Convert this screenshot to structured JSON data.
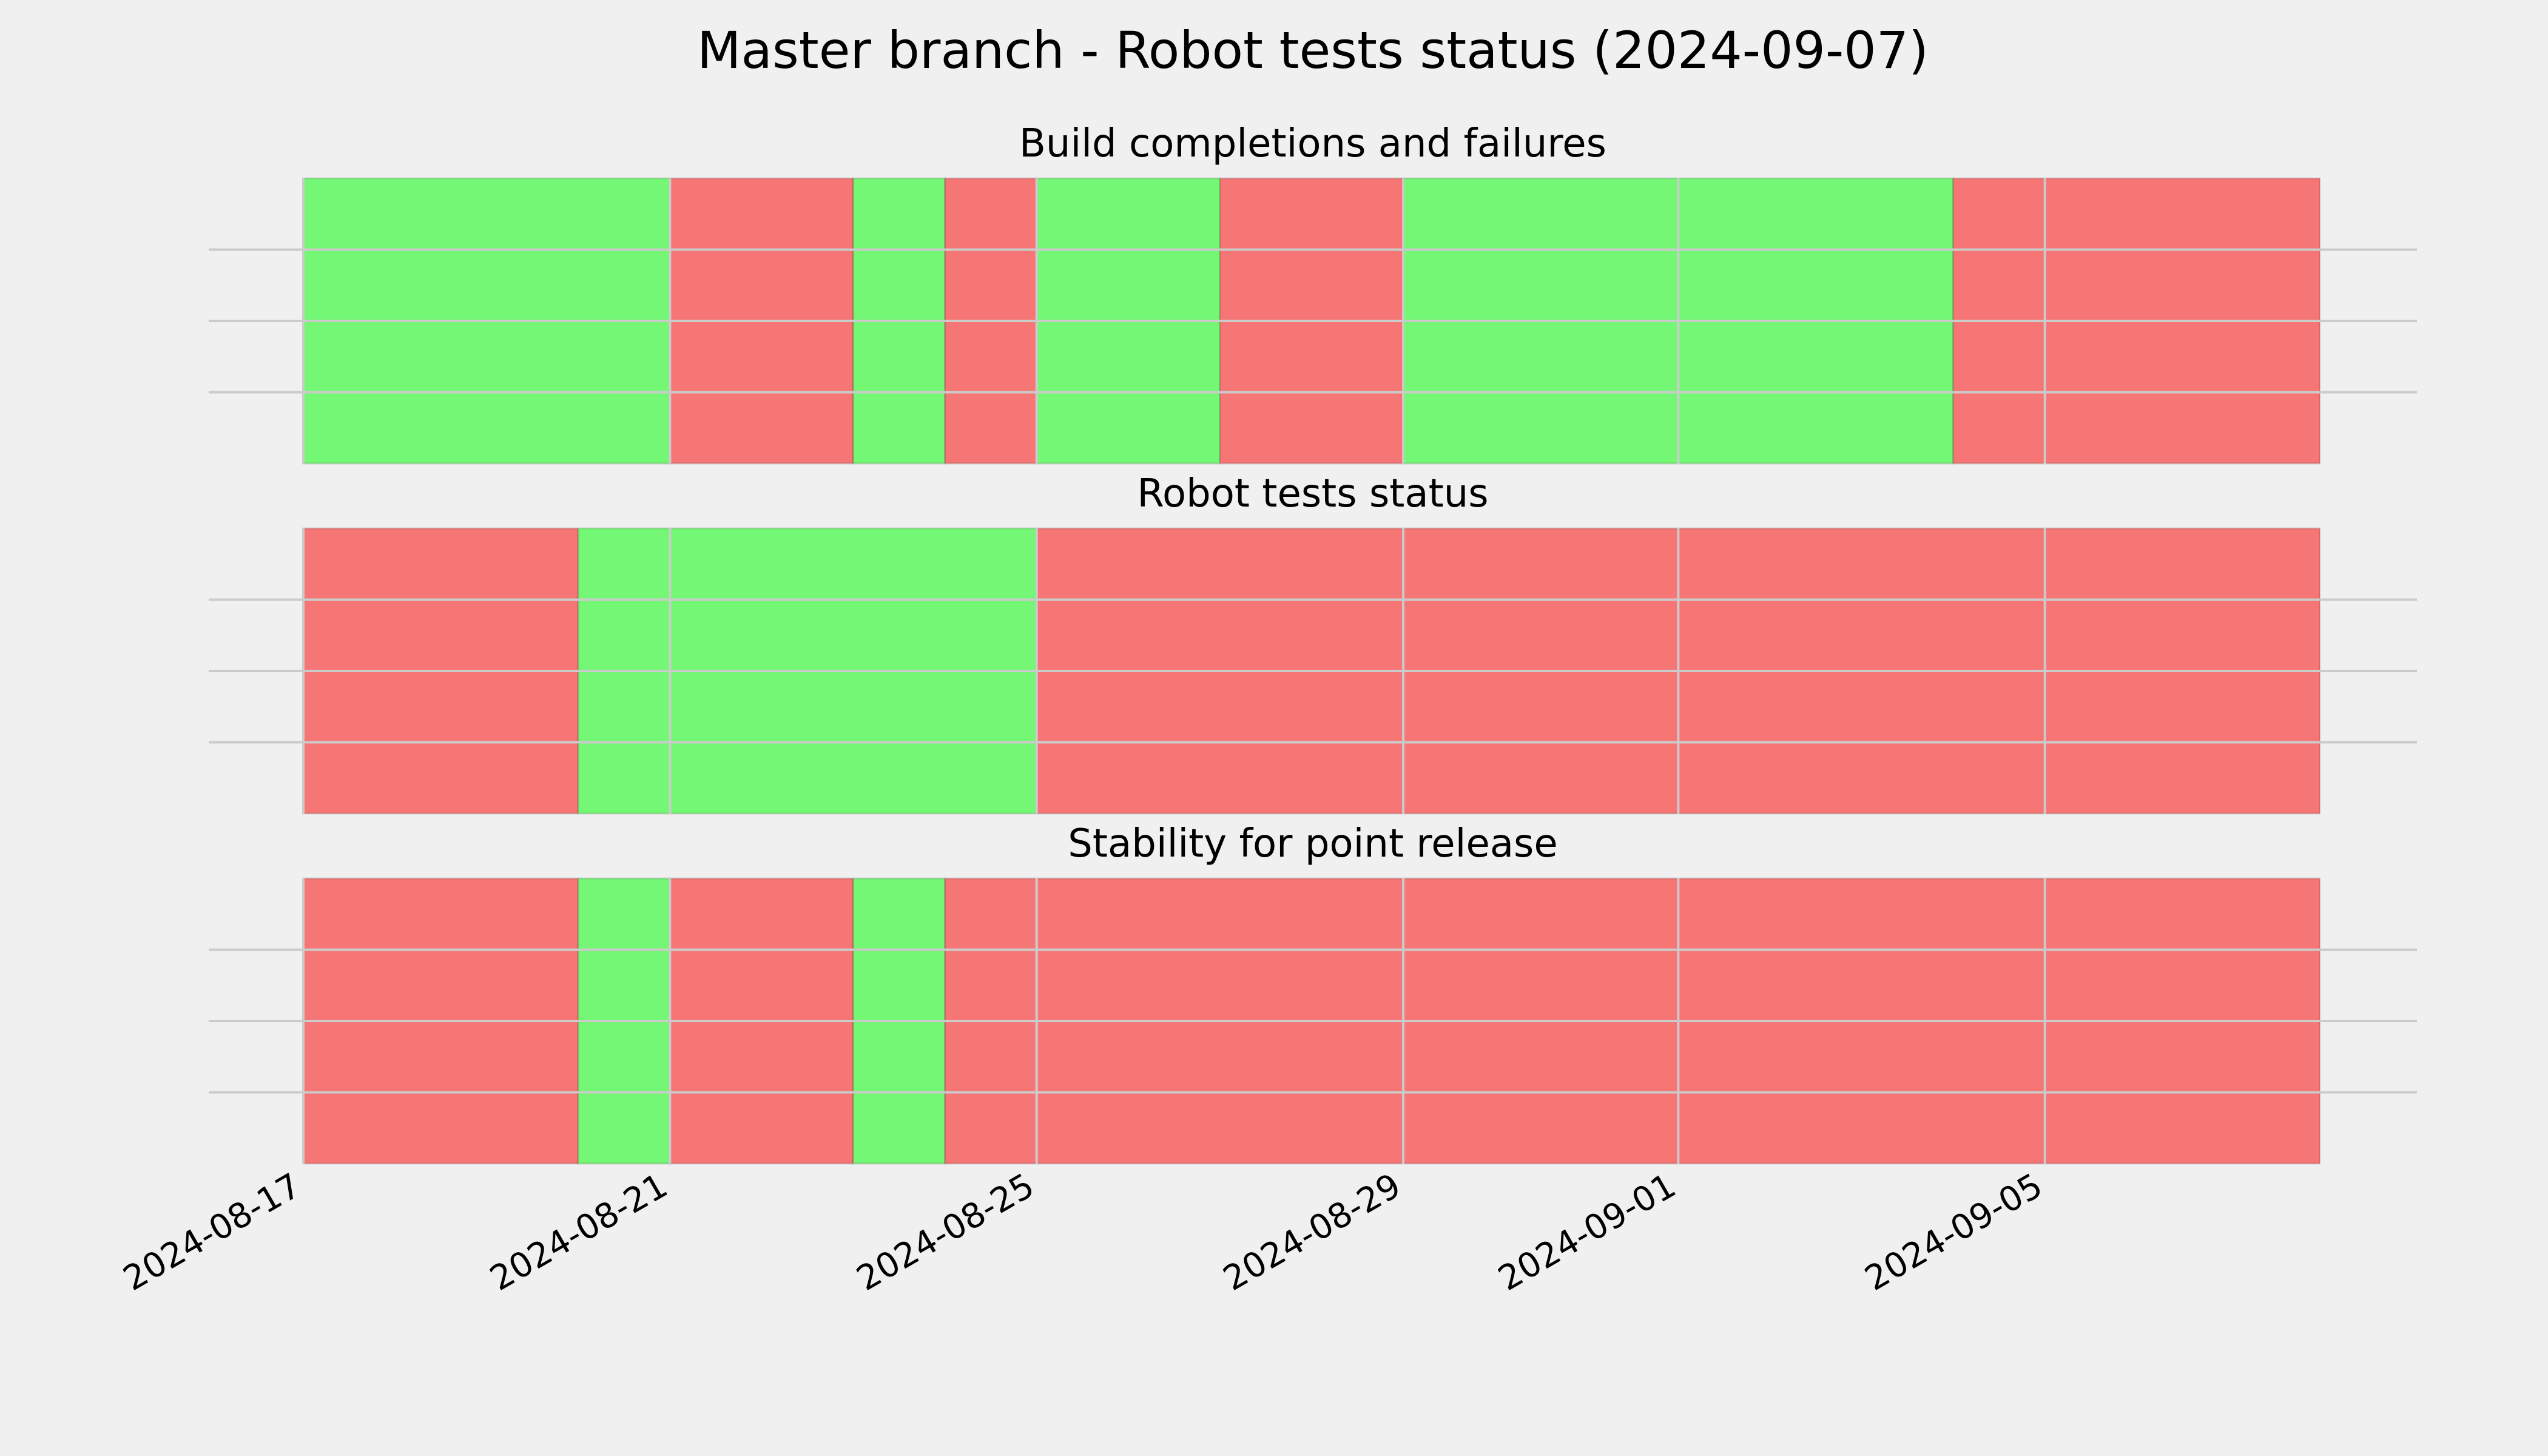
{
  "chart_data": {
    "type": "timeline",
    "title": "Master branch - Robot tests status (2024-09-07)",
    "colors": {
      "pass": "#74f774",
      "fail": "#f67676"
    },
    "x_range": [
      "2024-08-17",
      "2024-09-08"
    ],
    "xticks": [
      "2024-08-17",
      "2024-08-21",
      "2024-08-25",
      "2024-08-29",
      "2024-09-01",
      "2024-09-05"
    ],
    "grid": true,
    "panels": [
      {
        "title": "Build completions and failures",
        "segments": [
          {
            "start": "2024-08-17",
            "end": "2024-08-21",
            "status": "pass"
          },
          {
            "start": "2024-08-21",
            "end": "2024-08-23",
            "status": "fail"
          },
          {
            "start": "2024-08-23",
            "end": "2024-08-24",
            "status": "pass"
          },
          {
            "start": "2024-08-24",
            "end": "2024-08-25",
            "status": "fail"
          },
          {
            "start": "2024-08-25",
            "end": "2024-08-27",
            "status": "pass"
          },
          {
            "start": "2024-08-27",
            "end": "2024-08-29",
            "status": "fail"
          },
          {
            "start": "2024-08-29",
            "end": "2024-09-04",
            "status": "pass"
          },
          {
            "start": "2024-09-04",
            "end": "2024-09-08",
            "status": "fail"
          }
        ]
      },
      {
        "title": "Robot tests status",
        "segments": [
          {
            "start": "2024-08-17",
            "end": "2024-08-20",
            "status": "fail"
          },
          {
            "start": "2024-08-20",
            "end": "2024-08-25",
            "status": "pass"
          },
          {
            "start": "2024-08-25",
            "end": "2024-09-08",
            "status": "fail"
          }
        ]
      },
      {
        "title": "Stability for point release",
        "segments": [
          {
            "start": "2024-08-17",
            "end": "2024-08-20",
            "status": "fail"
          },
          {
            "start": "2024-08-20",
            "end": "2024-08-21",
            "status": "pass"
          },
          {
            "start": "2024-08-21",
            "end": "2024-08-23",
            "status": "fail"
          },
          {
            "start": "2024-08-23",
            "end": "2024-08-24",
            "status": "pass"
          },
          {
            "start": "2024-08-24",
            "end": "2024-09-08",
            "status": "fail"
          }
        ]
      }
    ]
  }
}
